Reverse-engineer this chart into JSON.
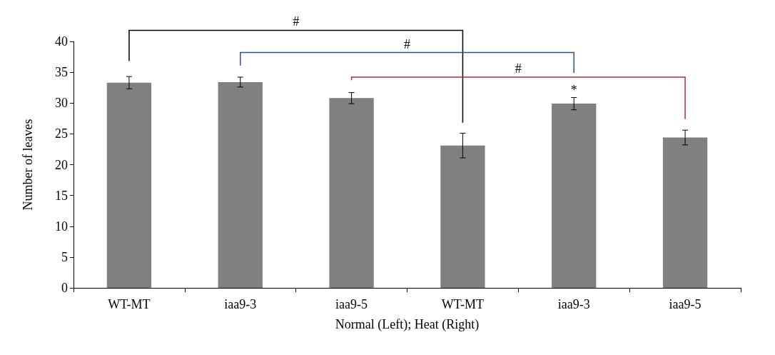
{
  "chart_data": {
    "type": "bar",
    "xlabel": "Normal (Left); Heat (Right)",
    "ylabel": "Number of leaves",
    "categories": [
      "WT-MT",
      "iaa9-3",
      "iaa9-5",
      "WT-MT",
      "iaa9-3",
      "iaa9-5"
    ],
    "values": [
      33.3,
      33.4,
      30.8,
      23.1,
      29.9,
      24.4
    ],
    "errors": [
      1.0,
      0.8,
      0.9,
      2.0,
      1.0,
      1.2
    ],
    "color": "#808080",
    "ylim": [
      0,
      40
    ],
    "yticks": [
      0,
      5,
      10,
      15,
      20,
      25,
      30,
      35,
      40
    ],
    "grid": false,
    "annotations": [
      "#",
      "#",
      "#",
      "*"
    ]
  }
}
